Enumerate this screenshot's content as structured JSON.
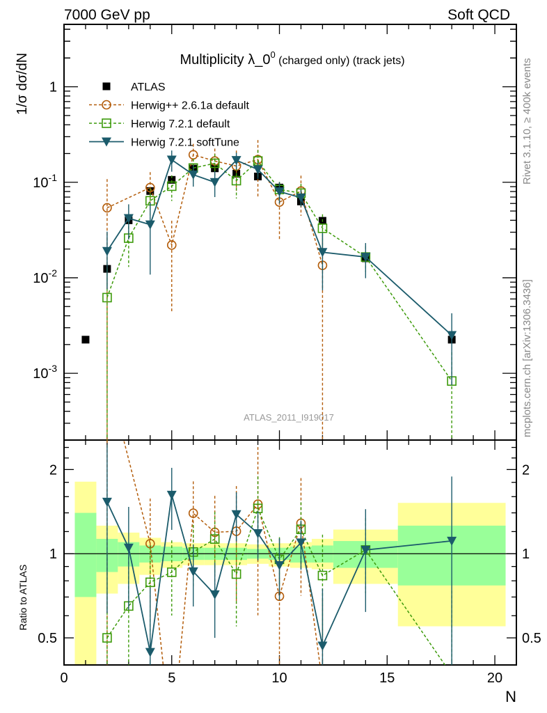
{
  "header": {
    "left": "7000 GeV pp",
    "right": "Soft QCD",
    "side_top": "Rivet 3.1.10, ≥ 400k events",
    "side_bottom": "mcplots.cern.ch [arXiv:1306.3436]",
    "analysis_id": "ATLAS_2011_I919017"
  },
  "chart_data": {
    "type": "scatter",
    "title_main": "Multiplicity λ_0",
    "title_sup": "0",
    "title_rest": " (charged only) (track jets)",
    "xlabel": "N",
    "ylabel": "1/σ dσ/dN",
    "ratio_ylabel": "Ratio to ATLAS",
    "xlim": [
      0,
      21
    ],
    "ylim": [
      0.0002,
      4.5
    ],
    "yscale": "log",
    "ratio_ylim": [
      0.4,
      2.55
    ],
    "x_tick_labels": [
      "0",
      "5",
      "10",
      "15",
      "20"
    ],
    "y_tick_labels": [
      {
        "base": "10",
        "exp": "-3"
      },
      {
        "base": "10",
        "exp": "-2"
      },
      {
        "base": "10",
        "exp": "-1"
      },
      {
        "base": "1",
        "exp": ""
      }
    ],
    "ratio_tick_labels": [
      "0.5",
      "1",
      "2"
    ],
    "legend_position": "top-left",
    "reference": {
      "name": "ATLAS",
      "color": "#000000",
      "x": [
        1,
        2,
        3,
        4,
        5,
        6,
        7,
        8,
        9,
        10,
        11,
        12,
        14,
        18
      ],
      "values": [
        0.00225,
        0.0124,
        0.04,
        0.081,
        0.106,
        0.139,
        0.14,
        0.123,
        0.115,
        0.088,
        0.063,
        0.0395,
        0.016,
        0.00225
      ]
    },
    "bands": {
      "edges": [
        [
          0.5,
          1.5
        ],
        [
          1.5,
          2.5
        ],
        [
          2.5,
          3.5
        ],
        [
          3.5,
          4.5
        ],
        [
          4.5,
          5.5
        ],
        [
          5.5,
          6.5
        ],
        [
          6.5,
          7.5
        ],
        [
          7.5,
          8.5
        ],
        [
          8.5,
          9.5
        ],
        [
          9.5,
          10.5
        ],
        [
          10.5,
          11.5
        ],
        [
          11.5,
          12.5
        ],
        [
          12.5,
          15.5
        ],
        [
          15.5,
          20.5
        ]
      ],
      "total": [
        [
          0.3,
          1.81
        ],
        [
          0.72,
          1.26
        ],
        [
          0.78,
          1.19
        ],
        [
          0.84,
          1.14
        ],
        [
          0.89,
          1.1
        ],
        [
          0.91,
          1.09
        ],
        [
          0.91,
          1.09
        ],
        [
          0.91,
          1.09
        ],
        [
          0.92,
          1.08
        ],
        [
          0.9,
          1.09
        ],
        [
          0.89,
          1.1
        ],
        [
          0.88,
          1.13
        ],
        [
          0.78,
          1.22
        ],
        [
          0.55,
          1.52
        ]
      ],
      "stat": [
        [
          0.7,
          1.4
        ],
        [
          0.86,
          1.13
        ],
        [
          0.9,
          1.1
        ],
        [
          0.93,
          1.07
        ],
        [
          0.94,
          1.06
        ],
        [
          0.95,
          1.05
        ],
        [
          0.95,
          1.05
        ],
        [
          0.95,
          1.05
        ],
        [
          0.96,
          1.04
        ],
        [
          0.95,
          1.05
        ],
        [
          0.93,
          1.06
        ],
        [
          0.93,
          1.07
        ],
        [
          0.89,
          1.11
        ],
        [
          0.77,
          1.26
        ]
      ],
      "total_color": "#ffff99",
      "stat_color": "#99ff99"
    },
    "series": [
      {
        "name": "Herwig++ 2.6.1a default",
        "color": "#b35c0a",
        "marker": "circle",
        "dashed": true,
        "x": [
          2,
          4,
          5,
          6,
          7,
          8,
          9,
          10,
          11,
          12
        ],
        "values": [
          0.054,
          0.088,
          0.022,
          0.194,
          0.167,
          0.148,
          0.173,
          0.062,
          0.081,
          0.0135
        ],
        "rel_err": [
          1.0,
          0.45,
          0.8,
          0.3,
          0.35,
          0.45,
          0.6,
          0.6,
          0.45,
          1.0
        ]
      },
      {
        "name": "Herwig 7.2.1 default",
        "color": "#3c9a0a",
        "marker": "square",
        "dashed": true,
        "x": [
          2,
          3,
          4,
          5,
          6,
          7,
          8,
          9,
          10,
          11,
          12,
          14,
          18
        ],
        "values": [
          0.0062,
          0.026,
          0.064,
          0.091,
          0.141,
          0.158,
          0.104,
          0.167,
          0.084,
          0.077,
          0.033,
          0.0165,
          0.00083
        ],
        "rel_err": [
          1.0,
          0.5,
          0.35,
          0.3,
          0.25,
          0.25,
          0.35,
          0.3,
          0.2,
          0.25,
          0.4,
          0.3,
          1.0
        ]
      },
      {
        "name": "Herwig 7.2.1 softTune",
        "color": "#1b5b6b",
        "marker": "triangle-down",
        "dashed": false,
        "x": [
          2,
          3,
          4,
          5,
          6,
          7,
          8,
          9,
          10,
          11,
          12,
          14,
          18
        ],
        "values": [
          0.019,
          0.042,
          0.036,
          0.172,
          0.12,
          0.1,
          0.17,
          0.136,
          0.08,
          0.069,
          0.0185,
          0.0165,
          0.0025
        ],
        "rel_err": [
          0.6,
          0.4,
          0.7,
          0.25,
          0.25,
          0.3,
          0.2,
          0.2,
          0.25,
          0.2,
          0.6,
          0.4,
          0.7
        ]
      }
    ]
  }
}
